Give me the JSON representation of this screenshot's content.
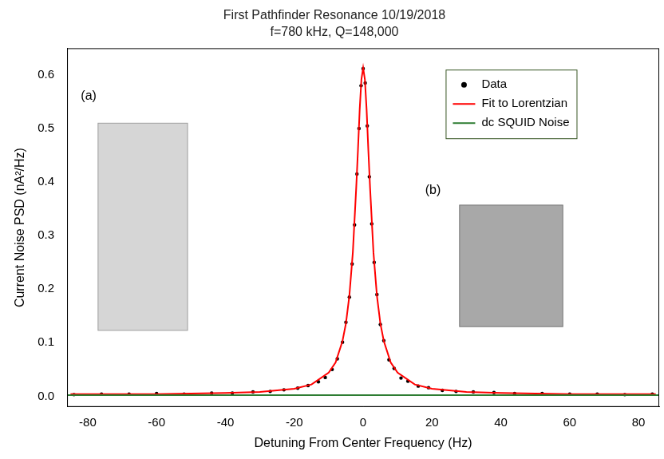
{
  "chart_data": {
    "type": "scatter",
    "title": "First Pathfinder Resonance 10/19/2018",
    "subtitle": "f=780 kHz, Q=148,000",
    "x_label": "Detuning From Center Frequency (Hz)",
    "y_label": "Current Noise PSD (nA²/Hz)",
    "xlim": [
      -86,
      86
    ],
    "xticks": [
      -80,
      -60,
      -40,
      -20,
      0,
      20,
      40,
      60,
      80
    ],
    "ylim": [
      -0.02,
      0.65
    ],
    "yticks": [
      {
        "value": 0,
        "label": "0.0"
      },
      0.1,
      0.2,
      0.3,
      0.4,
      0.5,
      0.6
    ],
    "grid": false,
    "legend": "upper right",
    "annotations": [
      "(a)",
      "(b)"
    ],
    "series": [
      {
        "name": "Data",
        "color": "#000000",
        "marker": "circle",
        "line_style": "none",
        "x": [
          -84,
          -76,
          -68,
          -60,
          -52,
          -44,
          -38,
          -32,
          -27,
          -23,
          -19,
          -16,
          -13,
          -11,
          -9,
          -7.5,
          -6,
          -5,
          -4,
          -3.2,
          -2.5,
          -1.8,
          -1.2,
          -0.6,
          0,
          0.6,
          1.2,
          1.8,
          2.5,
          3.2,
          4,
          5,
          6,
          7.5,
          9,
          11,
          13,
          16,
          19,
          23,
          27,
          32,
          38,
          44,
          52,
          60,
          68,
          76,
          84
        ],
        "values": [
          0.003,
          0.004,
          0.004,
          0.005,
          0.004,
          0.006,
          0.006,
          0.008,
          0.009,
          0.012,
          0.015,
          0.02,
          0.027,
          0.035,
          0.05,
          0.07,
          0.101,
          0.138,
          0.185,
          0.247,
          0.32,
          0.415,
          0.5,
          0.58,
          0.612,
          0.585,
          0.505,
          0.41,
          0.322,
          0.25,
          0.19,
          0.134,
          0.104,
          0.068,
          0.052,
          0.034,
          0.028,
          0.019,
          0.016,
          0.011,
          0.009,
          0.008,
          0.007,
          0.005,
          0.005,
          0.004,
          0.004,
          0.003,
          0.004
        ]
      },
      {
        "name": "Fit to Lorentzian",
        "color": "#ff0000",
        "marker": "none",
        "line_style": "solid",
        "x": [
          -85,
          -60,
          -40,
          -30,
          -20,
          -15,
          -10,
          -8,
          -6,
          -5,
          -4,
          -3,
          -2,
          -1.5,
          -1,
          -0.5,
          0,
          0.5,
          1,
          1.5,
          2,
          3,
          4,
          5,
          6,
          8,
          10,
          15,
          20,
          30,
          40,
          60,
          85
        ],
        "values": [
          0.004,
          0.004,
          0.006,
          0.008,
          0.014,
          0.022,
          0.044,
          0.063,
          0.103,
          0.136,
          0.188,
          0.268,
          0.391,
          0.461,
          0.536,
          0.592,
          0.613,
          0.592,
          0.536,
          0.461,
          0.391,
          0.268,
          0.188,
          0.136,
          0.103,
          0.063,
          0.044,
          0.022,
          0.014,
          0.008,
          0.006,
          0.004,
          0.004
        ]
      },
      {
        "name": "dc SQUID Noise",
        "color": "#2e7d32",
        "marker": "none",
        "line_style": "solid",
        "x": [
          -86,
          86
        ],
        "values": [
          0.002,
          0.002
        ]
      }
    ]
  }
}
